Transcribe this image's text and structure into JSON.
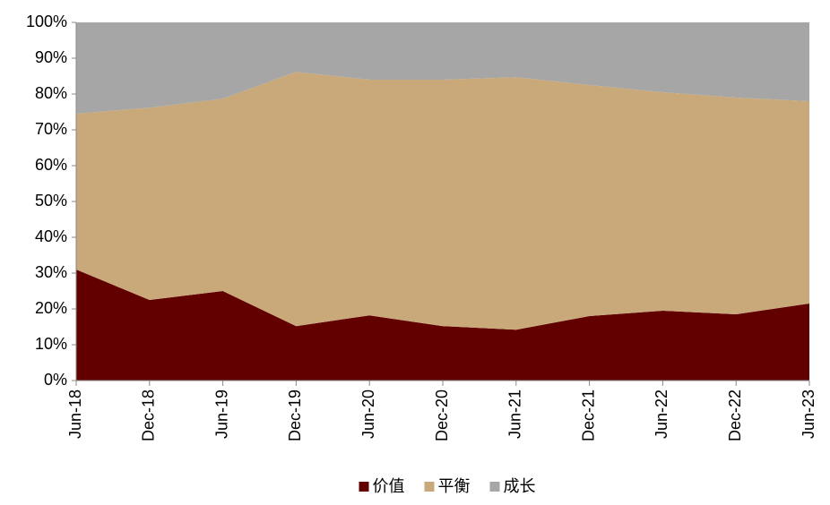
{
  "chart_data": {
    "type": "area",
    "stacked": true,
    "categories": [
      "Jun-18",
      "Dec-18",
      "Jun-19",
      "Dec-19",
      "Jun-20",
      "Dec-20",
      "Jun-21",
      "Dec-21",
      "Jun-22",
      "Dec-22",
      "Jun-23"
    ],
    "series": [
      {
        "name": "价值",
        "color": "#620000",
        "values": [
          31,
          22.5,
          25,
          15.2,
          18.2,
          15.2,
          14.2,
          18,
          19.5,
          18.5,
          21.5
        ]
      },
      {
        "name": "平衡",
        "color": "#c9a97a",
        "values": [
          43.5,
          53.7,
          53.7,
          71,
          65.8,
          68.8,
          70.5,
          64.5,
          61,
          60.5,
          56.5
        ]
      },
      {
        "name": "成长",
        "color": "#a6a6a6",
        "values": [
          25.5,
          23.8,
          21.3,
          13.8,
          16,
          16,
          15.3,
          17.5,
          19.5,
          21,
          22
        ]
      }
    ],
    "ylim": [
      0,
      100
    ],
    "yticks": [
      {
        "value": 0,
        "label": "0%"
      },
      {
        "value": 10,
        "label": "10%"
      },
      {
        "value": 20,
        "label": "20%"
      },
      {
        "value": 30,
        "label": "30%"
      },
      {
        "value": 40,
        "label": "40%"
      },
      {
        "value": 50,
        "label": "50%"
      },
      {
        "value": 60,
        "label": "60%"
      },
      {
        "value": 70,
        "label": "70%"
      },
      {
        "value": 80,
        "label": "80%"
      },
      {
        "value": 90,
        "label": "90%"
      },
      {
        "value": 100,
        "label": "100%"
      }
    ],
    "legend": "bottom"
  }
}
